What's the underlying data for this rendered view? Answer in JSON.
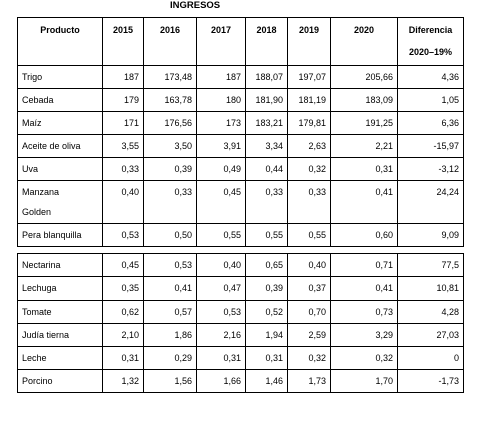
{
  "title": "INGRESOS",
  "tables": [
    {
      "header": [
        "Producto",
        "2015",
        "2016",
        "2017",
        "2018",
        "2019",
        "2020",
        [
          "Diferencia",
          "2020–19%"
        ]
      ],
      "rows": [
        [
          "Trigo",
          "187",
          "173,48",
          "187",
          "188,07",
          "197,07",
          "205,66",
          "4,36"
        ],
        [
          "Cebada",
          "179",
          "163,78",
          "180",
          "181,90",
          "181,19",
          "183,09",
          "1,05"
        ],
        [
          "Maíz",
          "171",
          "176,56",
          "173",
          "183,21",
          "179,81",
          "191,25",
          "6,36"
        ],
        [
          "Aceite de oliva",
          "3,55",
          "3,50",
          "3,91",
          "3,34",
          "2,63",
          "2,21",
          "-15,97"
        ],
        [
          "Uva",
          "0,33",
          "0,39",
          "0,49",
          "0,44",
          "0,32",
          "0,31",
          "-3,12"
        ],
        [
          [
            "Manzana",
            "Golden"
          ],
          "0,40",
          "0,33",
          "0,45",
          "0,33",
          "0,33",
          "0,41",
          "24,24"
        ],
        [
          "Pera blanquilla",
          "0,53",
          "0,50",
          "0,55",
          "0,55",
          "0,55",
          "0,60",
          "9,09"
        ]
      ]
    },
    {
      "rows": [
        [
          "Nectarina",
          "0,45",
          "0,53",
          "0,40",
          "0,65",
          "0,40",
          "0,71",
          "77,5"
        ],
        [
          "Lechuga",
          "0,35",
          "0,41",
          "0,47",
          "0,39",
          "0,37",
          "0,41",
          "10,81"
        ],
        [
          "Tomate",
          "0,62",
          "0,57",
          "0,53",
          "0,52",
          "0,70",
          "0,73",
          "4,28"
        ],
        [
          "Judía tierna",
          "2,10",
          "1,86",
          "2,16",
          "1,94",
          "2,59",
          "3,29",
          "27,03"
        ],
        [
          "Leche",
          "0,31",
          "0,29",
          "0,31",
          "0,31",
          "0,32",
          "0,32",
          "0"
        ],
        [
          "Porcino",
          "1,32",
          "1,56",
          "1,66",
          "1,46",
          "1,73",
          "1,70",
          "-1,73"
        ]
      ]
    }
  ]
}
